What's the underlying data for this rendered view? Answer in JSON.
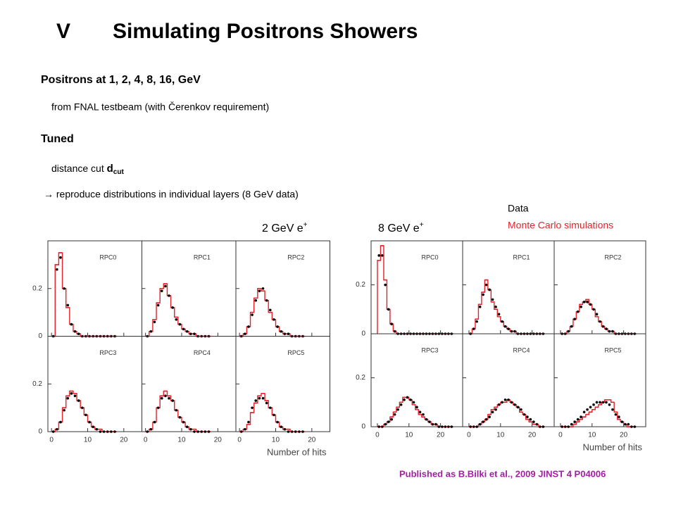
{
  "section": "V",
  "title": "Simulating Positrons Showers",
  "bullets": [
    {
      "text": "Positrons at 1, 2, 4, 8, 16, GeV"
    },
    {
      "text": "from FNAL testbeam (with Čerenkov requirement)"
    },
    {
      "text": "Tuned"
    },
    {
      "text": "distance cut ",
      "symbol": "d",
      "subscript": "cut"
    },
    {
      "text": "→ reproduce distributions in individual layers (8 GeV data)"
    }
  ],
  "legend": [
    {
      "name": "Data",
      "color": "#000000"
    },
    {
      "name": "Monte Carlo simulations",
      "color": "#e8202a"
    }
  ],
  "citation": "Published as B.Bilki et al., 2009 JINST 4 P04006",
  "chart_data": [
    {
      "type": "histogram",
      "title": "2 GeV e",
      "title_sup": "+",
      "xlabel": "Number of hits",
      "xlim": [
        -1,
        25
      ],
      "ylim": [
        0,
        0.4
      ],
      "xticks": [
        0,
        10,
        20
      ],
      "yticks": [
        0,
        0.2
      ],
      "bins": [
        0,
        1,
        2,
        3,
        4,
        5,
        6,
        7,
        8,
        9,
        10,
        11,
        12,
        13,
        14,
        15,
        16,
        17,
        18
      ],
      "panels": [
        {
          "name": "RPC0",
          "mc": [
            0,
            0.3,
            0.35,
            0.2,
            0.12,
            0.05,
            0.02,
            0.01,
            0,
            0,
            0,
            0,
            0,
            0,
            0,
            0,
            0,
            0
          ],
          "data": [
            0,
            0.28,
            0.33,
            0.2,
            0.13,
            0.05,
            0.02,
            0.01,
            0,
            0,
            0,
            0,
            0,
            0,
            0,
            0,
            0,
            0
          ]
        },
        {
          "name": "RPC1",
          "mc": [
            0,
            0.02,
            0.07,
            0.14,
            0.2,
            0.22,
            0.17,
            0.12,
            0.08,
            0.05,
            0.03,
            0.02,
            0.01,
            0.01,
            0,
            0,
            0,
            0
          ],
          "data": [
            0,
            0.02,
            0.06,
            0.13,
            0.19,
            0.21,
            0.17,
            0.12,
            0.07,
            0.05,
            0.03,
            0.02,
            0.01,
            0.01,
            0,
            0,
            0,
            0
          ]
        },
        {
          "name": "RPC2",
          "mc": [
            0,
            0.01,
            0.04,
            0.1,
            0.16,
            0.2,
            0.19,
            0.15,
            0.1,
            0.07,
            0.04,
            0.02,
            0.01,
            0.01,
            0,
            0,
            0,
            0
          ],
          "data": [
            0,
            0.01,
            0.04,
            0.09,
            0.15,
            0.19,
            0.2,
            0.15,
            0.11,
            0.07,
            0.04,
            0.02,
            0.01,
            0.01,
            0,
            0,
            0,
            0
          ]
        },
        {
          "name": "RPC3",
          "mc": [
            0,
            0.01,
            0.04,
            0.1,
            0.15,
            0.17,
            0.16,
            0.13,
            0.1,
            0.07,
            0.04,
            0.02,
            0.01,
            0.01,
            0,
            0,
            0,
            0
          ],
          "data": [
            0,
            0.01,
            0.04,
            0.09,
            0.14,
            0.16,
            0.15,
            0.13,
            0.1,
            0.07,
            0.04,
            0.02,
            0.01,
            0,
            0,
            0,
            0,
            0
          ]
        },
        {
          "name": "RPC4",
          "mc": [
            0,
            0.01,
            0.04,
            0.1,
            0.15,
            0.17,
            0.15,
            0.13,
            0.09,
            0.06,
            0.04,
            0.02,
            0.01,
            0.01,
            0,
            0,
            0,
            0
          ],
          "data": [
            0,
            0.01,
            0.04,
            0.1,
            0.14,
            0.15,
            0.14,
            0.13,
            0.09,
            0.06,
            0.04,
            0.02,
            0.01,
            0,
            0,
            0,
            0,
            0
          ]
        },
        {
          "name": "RPC5",
          "mc": [
            0,
            0.01,
            0.03,
            0.08,
            0.12,
            0.15,
            0.16,
            0.13,
            0.1,
            0.07,
            0.04,
            0.02,
            0.01,
            0.01,
            0,
            0,
            0,
            0
          ],
          "data": [
            0,
            0.01,
            0.04,
            0.1,
            0.13,
            0.14,
            0.14,
            0.12,
            0.1,
            0.07,
            0.04,
            0.02,
            0.01,
            0,
            0,
            0,
            0,
            0
          ]
        }
      ]
    },
    {
      "type": "histogram",
      "title": "8 GeV e",
      "title_sup": "+",
      "xlabel": "Number of hits",
      "xlim": [
        -2,
        27
      ],
      "ylim": [
        0,
        0.38
      ],
      "xticks": [
        0,
        10,
        20
      ],
      "yticks": [
        0,
        0.2
      ],
      "bins": [
        0,
        1,
        2,
        3,
        4,
        5,
        6,
        7,
        8,
        9,
        10,
        11,
        12,
        13,
        14,
        15,
        16,
        17,
        18,
        19,
        20,
        21,
        22,
        23,
        24
      ],
      "panels": [
        {
          "name": "RPC0",
          "mc": [
            0.3,
            0.36,
            0.22,
            0.1,
            0.04,
            0.01,
            0,
            0,
            0,
            0,
            0,
            0,
            0,
            0,
            0,
            0,
            0,
            0,
            0,
            0,
            0,
            0,
            0,
            0
          ],
          "data": [
            0.32,
            0.32,
            0.2,
            0.1,
            0.04,
            0.01,
            0,
            0,
            0,
            0,
            0,
            0,
            0,
            0,
            0,
            0,
            0,
            0,
            0,
            0,
            0,
            0,
            0,
            0
          ]
        },
        {
          "name": "RPC1",
          "mc": [
            0,
            0.02,
            0.06,
            0.12,
            0.17,
            0.22,
            0.18,
            0.13,
            0.1,
            0.07,
            0.05,
            0.03,
            0.02,
            0.01,
            0.01,
            0,
            0,
            0,
            0,
            0,
            0,
            0,
            0,
            0
          ],
          "data": [
            0,
            0.02,
            0.05,
            0.11,
            0.16,
            0.2,
            0.18,
            0.14,
            0.11,
            0.08,
            0.05,
            0.03,
            0.02,
            0.01,
            0.01,
            0,
            0,
            0,
            0,
            0,
            0,
            0,
            0,
            0
          ]
        },
        {
          "name": "RPC2",
          "mc": [
            0,
            0,
            0.01,
            0.03,
            0.06,
            0.09,
            0.12,
            0.13,
            0.14,
            0.12,
            0.1,
            0.07,
            0.05,
            0.03,
            0.02,
            0.01,
            0.01,
            0,
            0,
            0,
            0,
            0,
            0,
            0
          ],
          "data": [
            0,
            0,
            0.01,
            0.03,
            0.06,
            0.09,
            0.11,
            0.13,
            0.13,
            0.12,
            0.1,
            0.08,
            0.05,
            0.03,
            0.02,
            0.01,
            0.01,
            0,
            0,
            0,
            0,
            0,
            0,
            0
          ]
        },
        {
          "name": "RPC3",
          "mc": [
            0,
            0,
            0.01,
            0.02,
            0.04,
            0.06,
            0.08,
            0.1,
            0.12,
            0.12,
            0.11,
            0.09,
            0.07,
            0.05,
            0.04,
            0.03,
            0.02,
            0.01,
            0.01,
            0,
            0,
            0,
            0,
            0
          ],
          "data": [
            0,
            0,
            0.01,
            0.02,
            0.03,
            0.05,
            0.07,
            0.09,
            0.11,
            0.12,
            0.11,
            0.1,
            0.08,
            0.06,
            0.05,
            0.03,
            0.02,
            0.01,
            0.01,
            0,
            0,
            0,
            0,
            0
          ]
        },
        {
          "name": "RPC4",
          "mc": [
            0,
            0,
            0,
            0.01,
            0.02,
            0.03,
            0.05,
            0.07,
            0.08,
            0.09,
            0.1,
            0.1,
            0.11,
            0.1,
            0.09,
            0.08,
            0.06,
            0.05,
            0.03,
            0.02,
            0.01,
            0.01,
            0,
            0
          ],
          "data": [
            0,
            0,
            0,
            0.01,
            0.02,
            0.03,
            0.04,
            0.06,
            0.07,
            0.09,
            0.1,
            0.11,
            0.11,
            0.1,
            0.09,
            0.08,
            0.07,
            0.05,
            0.04,
            0.03,
            0.02,
            0.01,
            0,
            0
          ]
        },
        {
          "name": "RPC5",
          "mc": [
            0,
            0,
            0,
            0,
            0.01,
            0.02,
            0.03,
            0.04,
            0.05,
            0.06,
            0.07,
            0.08,
            0.09,
            0.1,
            0.11,
            0.11,
            0.1,
            0.06,
            0.03,
            0.02,
            0.01,
            0,
            0,
            0
          ],
          "data": [
            0,
            0,
            0,
            0.01,
            0.02,
            0.03,
            0.04,
            0.06,
            0.07,
            0.08,
            0.09,
            0.1,
            0.1,
            0.1,
            0.1,
            0.09,
            0.07,
            0.05,
            0.04,
            0.02,
            0.01,
            0.01,
            0,
            0
          ]
        }
      ]
    }
  ]
}
